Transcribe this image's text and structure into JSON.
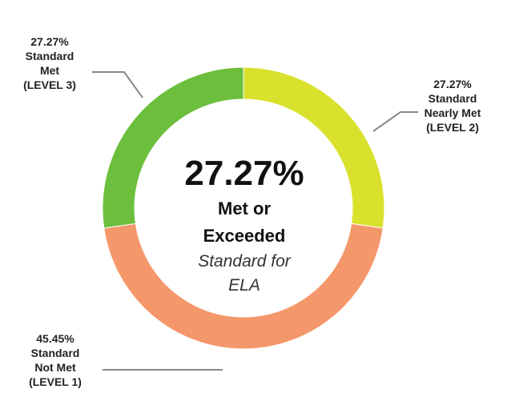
{
  "chart_data": {
    "type": "donut",
    "categories": [
      "Standard Nearly Met",
      "Standard Not Met",
      "Standard Met"
    ],
    "levels": [
      "(LEVEL 2)",
      "(LEVEL 1)",
      "(LEVEL 3)"
    ],
    "values": [
      27.27,
      45.45,
      27.27
    ],
    "value_labels": [
      "27.27%",
      "45.45%",
      "27.27%"
    ],
    "colors": [
      "#d9e12c",
      "#f4976a",
      "#6cbf3c"
    ],
    "annotation": {
      "headline": "27.27%",
      "text": "Met or Exceeded",
      "subtext": "Standard for ELA"
    }
  }
}
